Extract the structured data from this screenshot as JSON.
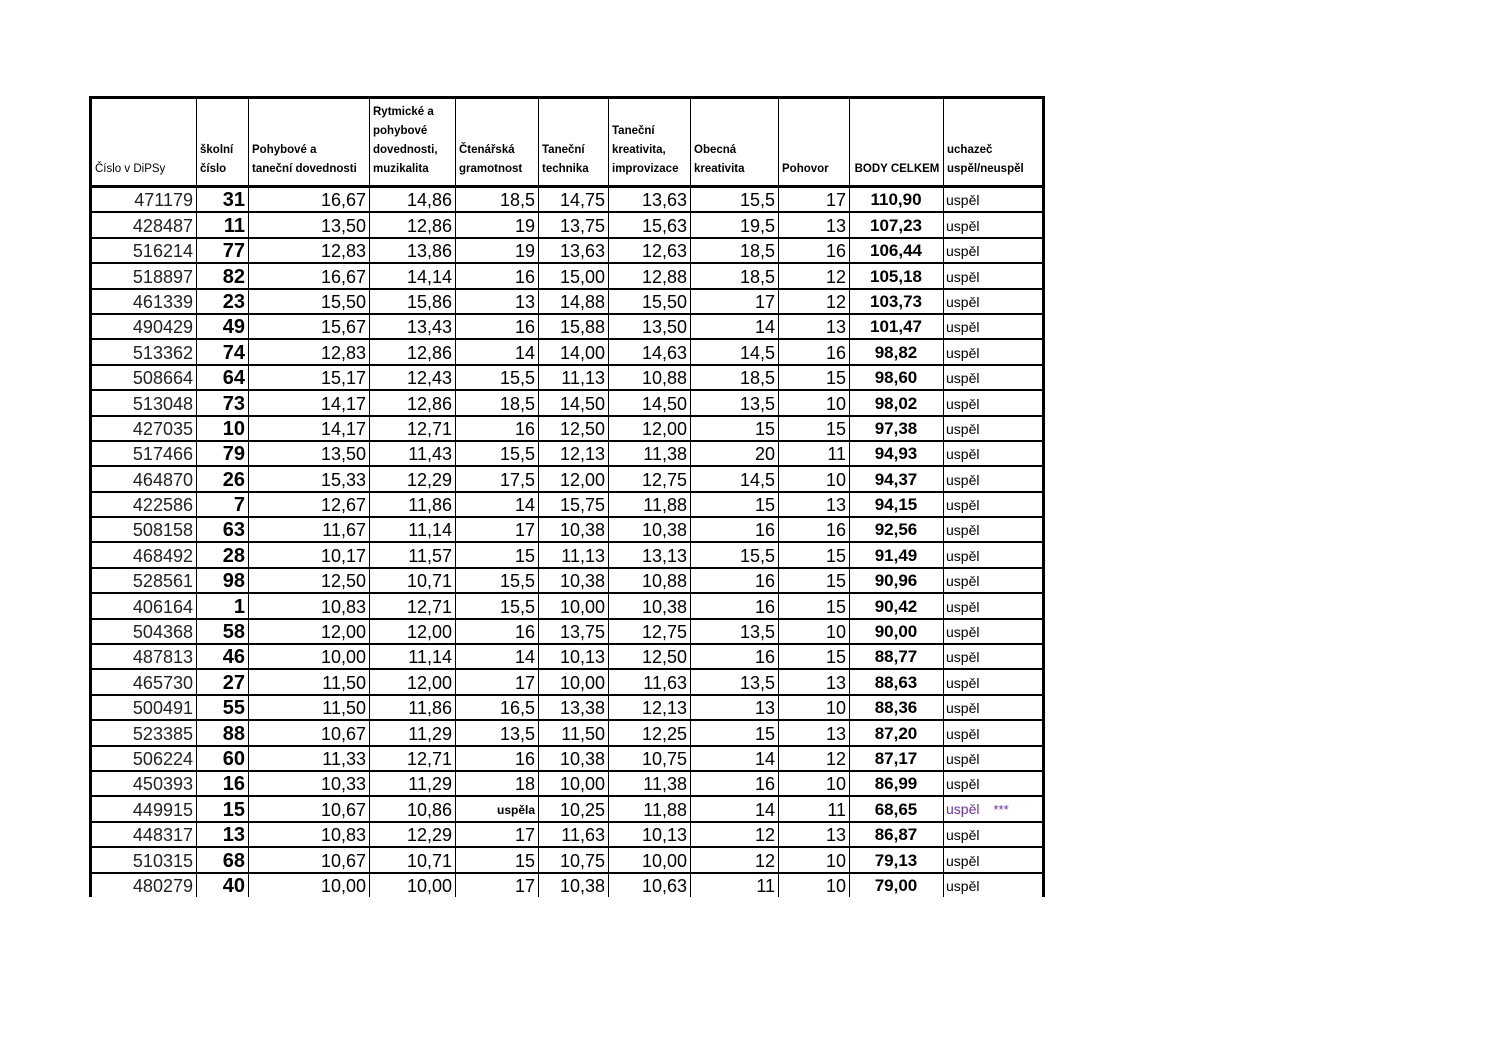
{
  "headers": [
    "Číslo v DiPSy",
    "školní\nčíslo",
    "Pohybové a\ntaneční dovednosti",
    "Rytmické a\npohybové\ndovednosti,\nmuzikalita",
    "Čtenářská\ngramotnost",
    "Taneční\ntechnika",
    "Taneční\nkreativita,\nimprovizace",
    "Obecná\nkreativita",
    "Pohovor",
    "BODY CELKEM",
    "uchazeč\nuspěl/neuspěl"
  ],
  "rows": [
    [
      "471179",
      "31",
      "16,67",
      "14,86",
      "18,5",
      "14,75",
      "13,63",
      "15,5",
      "17",
      "110,90",
      "uspěl"
    ],
    [
      "428487",
      "11",
      "13,50",
      "12,86",
      "19",
      "13,75",
      "15,63",
      "19,5",
      "13",
      "107,23",
      "uspěl"
    ],
    [
      "516214",
      "77",
      "12,83",
      "13,86",
      "19",
      "13,63",
      "12,63",
      "18,5",
      "16",
      "106,44",
      "uspěl"
    ],
    [
      "518897",
      "82",
      "16,67",
      "14,14",
      "16",
      "15,00",
      "12,88",
      "18,5",
      "12",
      "105,18",
      "uspěl"
    ],
    [
      "461339",
      "23",
      "15,50",
      "15,86",
      "13",
      "14,88",
      "15,50",
      "17",
      "12",
      "103,73",
      "uspěl"
    ],
    [
      "490429",
      "49",
      "15,67",
      "13,43",
      "16",
      "15,88",
      "13,50",
      "14",
      "13",
      "101,47",
      "uspěl"
    ],
    [
      "513362",
      "74",
      "12,83",
      "12,86",
      "14",
      "14,00",
      "14,63",
      "14,5",
      "16",
      "98,82",
      "uspěl"
    ],
    [
      "508664",
      "64",
      "15,17",
      "12,43",
      "15,5",
      "11,13",
      "10,88",
      "18,5",
      "15",
      "98,60",
      "uspěl"
    ],
    [
      "513048",
      "73",
      "14,17",
      "12,86",
      "18,5",
      "14,50",
      "14,50",
      "13,5",
      "10",
      "98,02",
      "uspěl"
    ],
    [
      "427035",
      "10",
      "14,17",
      "12,71",
      "16",
      "12,50",
      "12,00",
      "15",
      "15",
      "97,38",
      "uspěl"
    ],
    [
      "517466",
      "79",
      "13,50",
      "11,43",
      "15,5",
      "12,13",
      "11,38",
      "20",
      "11",
      "94,93",
      "uspěl"
    ],
    [
      "464870",
      "26",
      "15,33",
      "12,29",
      "17,5",
      "12,00",
      "12,75",
      "14,5",
      "10",
      "94,37",
      "uspěl"
    ],
    [
      "422586",
      "7",
      "12,67",
      "11,86",
      "14",
      "15,75",
      "11,88",
      "15",
      "13",
      "94,15",
      "uspěl"
    ],
    [
      "508158",
      "63",
      "11,67",
      "11,14",
      "17",
      "10,38",
      "10,38",
      "16",
      "16",
      "92,56",
      "uspěl"
    ],
    [
      "468492",
      "28",
      "10,17",
      "11,57",
      "15",
      "11,13",
      "13,13",
      "15,5",
      "15",
      "91,49",
      "uspěl"
    ],
    [
      "528561",
      "98",
      "12,50",
      "10,71",
      "15,5",
      "10,38",
      "10,88",
      "16",
      "15",
      "90,96",
      "uspěl"
    ],
    [
      "406164",
      "1",
      "10,83",
      "12,71",
      "15,5",
      "10,00",
      "10,38",
      "16",
      "15",
      "90,42",
      "uspěl"
    ],
    [
      "504368",
      "58",
      "12,00",
      "12,00",
      "16",
      "13,75",
      "12,75",
      "13,5",
      "10",
      "90,00",
      "uspěl"
    ],
    [
      "487813",
      "46",
      "10,00",
      "11,14",
      "14",
      "10,13",
      "12,50",
      "16",
      "15",
      "88,77",
      "uspěl"
    ],
    [
      "465730",
      "27",
      "11,50",
      "12,00",
      "17",
      "10,00",
      "11,63",
      "13,5",
      "13",
      "88,63",
      "uspěl"
    ],
    [
      "500491",
      "55",
      "11,50",
      "11,86",
      "16,5",
      "13,38",
      "12,13",
      "13",
      "10",
      "88,36",
      "uspěl"
    ],
    [
      "523385",
      "88",
      "10,67",
      "11,29",
      "13,5",
      "11,50",
      "12,25",
      "15",
      "13",
      "87,20",
      "uspěl"
    ],
    [
      "506224",
      "60",
      "11,33",
      "12,71",
      "16",
      "10,38",
      "10,75",
      "14",
      "12",
      "87,17",
      "uspěl"
    ],
    [
      "450393",
      "16",
      "10,33",
      "11,29",
      "18",
      "10,00",
      "11,38",
      "16",
      "10",
      "86,99",
      "uspěl"
    ],
    [
      "449915",
      "15",
      "10,67",
      "10,86",
      "uspěla",
      "10,25",
      "11,88",
      "14",
      "11",
      "68,65",
      "uspěl"
    ],
    [
      "448317",
      "13",
      "10,83",
      "12,29",
      "17",
      "11,63",
      "10,13",
      "12",
      "13",
      "86,87",
      "uspěl"
    ],
    [
      "510315",
      "68",
      "10,67",
      "10,71",
      "15",
      "10,75",
      "10,00",
      "12",
      "10",
      "79,13",
      "uspěl"
    ],
    [
      "480279",
      "40",
      "10,00",
      "10,00",
      "17",
      "10,38",
      "10,63",
      "11",
      "10",
      "79,00",
      "uspěl"
    ]
  ],
  "special_row": {
    "index": 24,
    "note": "***",
    "status_color": "#7030a0"
  }
}
